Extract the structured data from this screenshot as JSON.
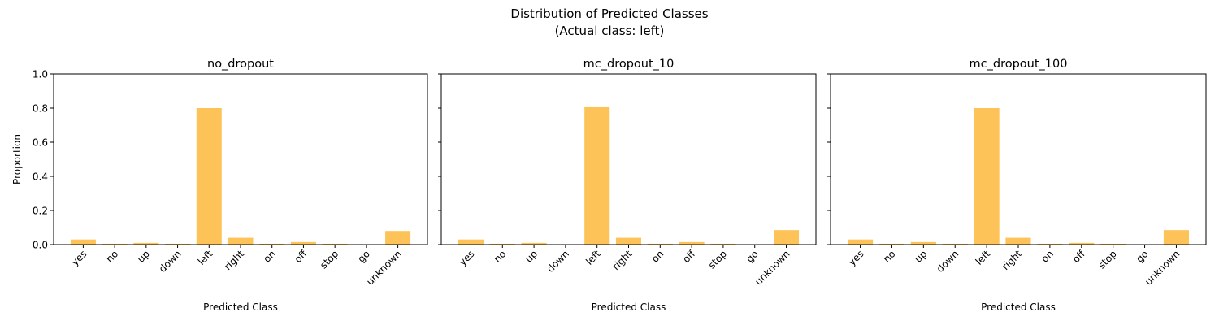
{
  "figure": {
    "suptitle_line1": "Distribution of Predicted Classes",
    "suptitle_line2": "(Actual class: left)",
    "bar_color": "#fdbf4f",
    "axis_color": "#000000"
  },
  "chart_data": [
    {
      "type": "bar",
      "title": "no_dropout",
      "xlabel": "Predicted Class",
      "ylabel": "Proportion",
      "ylim": [
        0,
        1.0
      ],
      "yticks": [
        "0.0",
        "0.2",
        "0.4",
        "0.6",
        "0.8",
        "1.0"
      ],
      "categories": [
        "yes",
        "no",
        "up",
        "down",
        "left",
        "right",
        "on",
        "off",
        "stop",
        "go",
        "unknown"
      ],
      "values": [
        0.03,
        0.005,
        0.01,
        0.005,
        0.8,
        0.04,
        0.005,
        0.015,
        0.005,
        0.0,
        0.08
      ]
    },
    {
      "type": "bar",
      "title": "mc_dropout_10",
      "xlabel": "Predicted Class",
      "ylabel": "",
      "ylim": [
        0,
        1.0
      ],
      "yticks": [
        "",
        "",
        "",
        "",
        "",
        ""
      ],
      "categories": [
        "yes",
        "no",
        "up",
        "down",
        "left",
        "right",
        "on",
        "off",
        "stop",
        "go",
        "unknown"
      ],
      "values": [
        0.03,
        0.005,
        0.01,
        0.0,
        0.805,
        0.04,
        0.005,
        0.015,
        0.005,
        0.0,
        0.085
      ]
    },
    {
      "type": "bar",
      "title": "mc_dropout_100",
      "xlabel": "Predicted Class",
      "ylabel": "",
      "ylim": [
        0,
        1.0
      ],
      "yticks": [
        "",
        "",
        "",
        "",
        "",
        ""
      ],
      "categories": [
        "yes",
        "no",
        "up",
        "down",
        "left",
        "right",
        "on",
        "off",
        "stop",
        "go",
        "unknown"
      ],
      "values": [
        0.03,
        0.005,
        0.015,
        0.005,
        0.8,
        0.04,
        0.005,
        0.01,
        0.005,
        0.0,
        0.085
      ]
    }
  ]
}
